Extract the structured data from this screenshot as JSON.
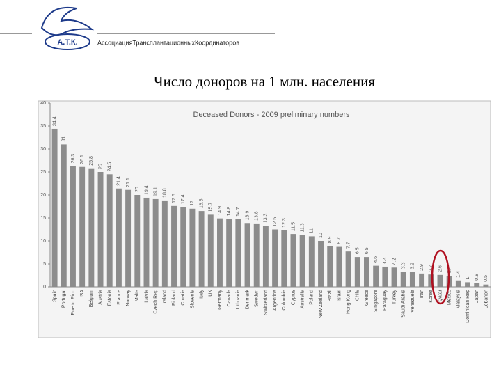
{
  "header": {
    "logo_text": "А.Т.К.",
    "organization": "АссоциацияТрансплантационныхКоординаторов"
  },
  "slide_title": "Число доноров на 1 млн. населения",
  "chart_data": {
    "type": "bar",
    "title": "Deceased Donors - 2009 preliminary numbers",
    "categories": [
      "Spain",
      "Portugal",
      "Puerto Rico",
      "USA",
      "Belgium",
      "Austria",
      "Estonia",
      "France",
      "Norway",
      "Malta",
      "Latvia",
      "Czech Rep",
      "Ireland",
      "Finland",
      "Croatia",
      "Slovenia",
      "Italy",
      "UK",
      "Germany",
      "Canada",
      "Lithuania",
      "Denmark",
      "Sweden",
      "Switzerland",
      "Argentina",
      "Colombia",
      "Cyprus",
      "Australia",
      "Poland",
      "New Zealand",
      "Brazil",
      "Israel",
      "Hong Kong",
      "Chile",
      "Greece",
      "Singapore",
      "Paraguay",
      "Turkey",
      "Saudi Arabia",
      "Venezuela",
      "Iran",
      "Korea",
      "Qatar",
      "Mexico",
      "Malaysia",
      "Dominican Rep",
      "Japan",
      "Lebanon"
    ],
    "values": [
      34.4,
      31,
      26.3,
      26.1,
      25.8,
      25,
      24.5,
      21.4,
      21.1,
      20,
      19.4,
      19.1,
      18.8,
      17.6,
      17.4,
      17,
      16.5,
      15.7,
      14.9,
      14.8,
      14.7,
      13.9,
      13.8,
      13.3,
      12.5,
      12.3,
      11.5,
      11.3,
      11,
      10,
      8.9,
      8.7,
      7.7,
      6.5,
      6.5,
      4.6,
      4.4,
      4.2,
      3.3,
      3.2,
      2.9,
      2.7,
      2.6,
      2.4,
      1.4,
      1,
      0.8,
      0.5
    ],
    "color": "#8c8c8c",
    "ylim": [
      0,
      40
    ],
    "yticks": [
      0,
      5,
      10,
      15,
      20,
      25,
      30,
      35,
      40
    ]
  }
}
